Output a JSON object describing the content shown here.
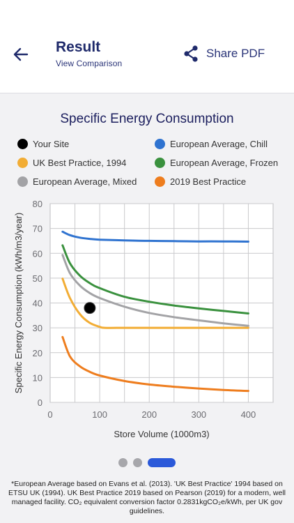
{
  "header": {
    "title": "Result",
    "subtitle": "View Comparison",
    "share_label": "Share PDF"
  },
  "legend": [
    {
      "label": "Your Site",
      "color": "#000000"
    },
    {
      "label": "European Average, Chill",
      "color": "#2f73d0"
    },
    {
      "label": "UK Best Practice, 1994",
      "color": "#f2ad35"
    },
    {
      "label": "European Average, Frozen",
      "color": "#3a913e"
    },
    {
      "label": "European Average, Mixed",
      "color": "#a3a3a6"
    },
    {
      "label": "2019 Best Practice",
      "color": "#ee7d1e"
    }
  ],
  "pager": {
    "count": 3,
    "active": 2
  },
  "footnote": "*European Average based on Evans et al. (2013). 'UK Best Practice' 1994 based on ETSU UK (1994). UK Best Practice 2019 based on Pearson (2019) for a modern, well managed facility.  CO₂ equivalent conversion factor 0.2831kgCO₂e/kWh, per UK gov guidelines.",
  "chart_data": {
    "type": "line",
    "title": "Specific Energy Consumption",
    "xlabel": "Store Volume (1000m3)",
    "ylabel": "Specific Energy Consumption (kWh/m3/year)",
    "xlim": [
      0,
      450
    ],
    "ylim": [
      0,
      80
    ],
    "xticks": [
      0,
      100,
      200,
      300,
      400
    ],
    "yticks": [
      0,
      10,
      20,
      30,
      40,
      50,
      60,
      70,
      80
    ],
    "grid": true,
    "legend_position": "top",
    "series": [
      {
        "name": "European Average, Chill",
        "color": "#2f73d0",
        "x": [
          25,
          40,
          60,
          80,
          100,
          150,
          200,
          250,
          300,
          350,
          400
        ],
        "y": [
          68.7,
          67.3,
          66.3,
          65.8,
          65.5,
          65.2,
          65.0,
          64.9,
          64.8,
          64.8,
          64.7
        ]
      },
      {
        "name": "European Average, Frozen",
        "color": "#3a913e",
        "x": [
          25,
          40,
          60,
          80,
          100,
          150,
          200,
          250,
          300,
          350,
          400
        ],
        "y": [
          63.2,
          56.0,
          51.0,
          48.0,
          46.0,
          42.5,
          40.5,
          39.0,
          37.8,
          36.8,
          35.8
        ]
      },
      {
        "name": "European Average, Mixed",
        "color": "#a3a3a6",
        "x": [
          25,
          40,
          60,
          80,
          100,
          150,
          200,
          250,
          300,
          350,
          400
        ],
        "y": [
          59.3,
          52.0,
          47.0,
          44.0,
          42.0,
          38.5,
          36.0,
          34.3,
          33.0,
          31.8,
          30.8
        ]
      },
      {
        "name": "UK Best Practice, 1994",
        "color": "#f2ad35",
        "x": [
          25,
          40,
          60,
          80,
          100,
          110,
          150,
          200,
          300,
          400
        ],
        "y": [
          49.8,
          42.0,
          35.5,
          32.0,
          30.4,
          30.0,
          30.0,
          30.0,
          30.0,
          30.0
        ]
      },
      {
        "name": "2019 Best Practice",
        "color": "#ee7d1e",
        "x": [
          25,
          40,
          60,
          80,
          100,
          150,
          200,
          250,
          300,
          350,
          400
        ],
        "y": [
          26.3,
          18.5,
          14.5,
          12.3,
          10.8,
          8.6,
          7.2,
          6.3,
          5.6,
          5.0,
          4.6
        ]
      }
    ],
    "points": [
      {
        "name": "Your Site",
        "color": "#000000",
        "x": 80,
        "y": 38
      }
    ]
  }
}
